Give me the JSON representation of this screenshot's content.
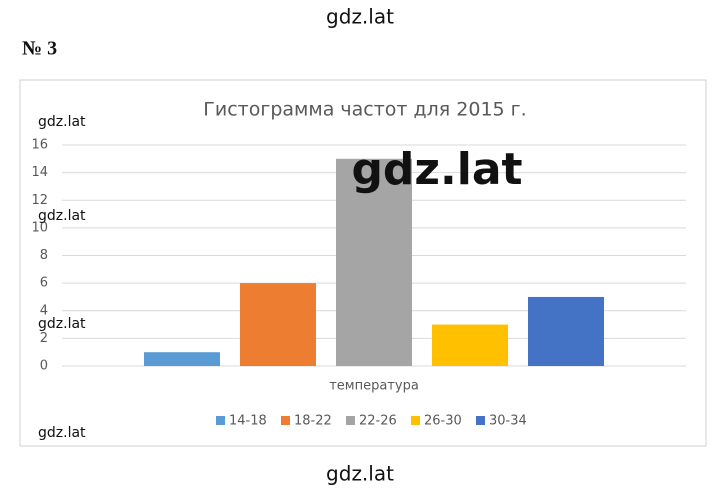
{
  "page": {
    "watermarks": [
      "gdz.lat",
      "gdz.lat",
      "gdz.lat",
      "gdz.lat",
      "gdz.lat",
      "gdz.lat",
      "gdz.lat"
    ],
    "problem_number": "№ 3"
  },
  "chart_data": {
    "type": "bar",
    "title": "Гистограмма частот для 2015 г.",
    "x_label": "температура",
    "categories": [
      null
    ],
    "series": [
      {
        "name": "14-18",
        "color": "#5b9bd5",
        "values": [
          1
        ]
      },
      {
        "name": "18-22",
        "color": "#ed7d31",
        "values": [
          6
        ]
      },
      {
        "name": "22-26",
        "color": "#a5a5a5",
        "values": [
          15
        ]
      },
      {
        "name": "26-30",
        "color": "#ffc000",
        "values": [
          3
        ]
      },
      {
        "name": "30-34",
        "color": "#4472c4",
        "values": [
          5
        ]
      }
    ],
    "ylim": [
      0,
      16
    ],
    "yticks": [
      0,
      2,
      4,
      6,
      8,
      10,
      12,
      14,
      16
    ],
    "grid": true,
    "legend": "bottom"
  }
}
